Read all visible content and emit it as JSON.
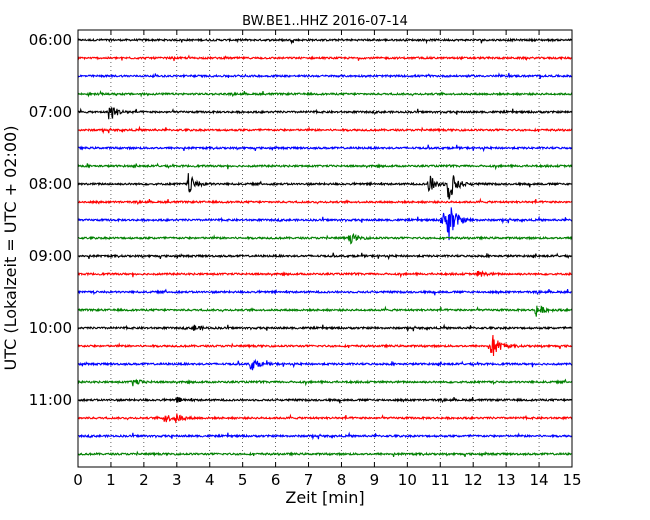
{
  "chart_data": {
    "type": "line",
    "title": "BW.BE1..HHZ 2016-07-14",
    "xlabel": "Zeit  [min]",
    "ylabel": "UTC (Lokalzeit = UTC + 02:00)",
    "xlim": [
      0,
      15
    ],
    "x_ticks": [
      "0",
      "1",
      "2",
      "3",
      "4",
      "5",
      "6",
      "7",
      "8",
      "9",
      "10",
      "11",
      "12",
      "13",
      "14",
      "15"
    ],
    "y_tick_labels": [
      "06:00",
      "07:00",
      "08:00",
      "09:00",
      "10:00",
      "11:00"
    ],
    "y_ticks_trace_index": [
      0,
      4,
      8,
      12,
      16,
      20
    ],
    "grid": "vertical dotted",
    "trace_colors": [
      "#000000",
      "#ff0000",
      "#0000ff",
      "#008000"
    ],
    "trace_start_times": [
      "06:00",
      "06:15",
      "06:30",
      "06:45",
      "07:00",
      "07:15",
      "07:30",
      "07:45",
      "08:00",
      "08:15",
      "08:30",
      "08:45",
      "09:00",
      "09:15",
      "09:30",
      "09:45",
      "10:00",
      "10:15",
      "10:30",
      "10:45",
      "11:00",
      "11:15",
      "11:30",
      "11:45"
    ],
    "events": [
      {
        "trace": 4,
        "minute": 0.95,
        "amplitude": 1.4
      },
      {
        "trace": 8,
        "minute": 3.35,
        "amplitude": 1.5
      },
      {
        "trace": 8,
        "minute": 10.65,
        "amplitude": 1.4
      },
      {
        "trace": 8,
        "minute": 11.25,
        "amplitude": 2.8
      },
      {
        "trace": 10,
        "minute": 11.05,
        "amplitude": 1.3
      },
      {
        "trace": 10,
        "minute": 11.25,
        "amplitude": 3.0
      },
      {
        "trace": 11,
        "minute": 8.25,
        "amplitude": 0.8
      },
      {
        "trace": 13,
        "minute": 12.15,
        "amplitude": 0.5
      },
      {
        "trace": 15,
        "minute": 13.9,
        "amplitude": 1.0
      },
      {
        "trace": 16,
        "minute": 3.5,
        "amplitude": 0.5
      },
      {
        "trace": 17,
        "minute": 12.55,
        "amplitude": 2.2
      },
      {
        "trace": 18,
        "minute": 5.25,
        "amplitude": 1.0
      },
      {
        "trace": 19,
        "minute": 1.65,
        "amplitude": 0.6
      },
      {
        "trace": 20,
        "minute": 3.0,
        "amplitude": 0.4
      },
      {
        "trace": 21,
        "minute": 2.6,
        "amplitude": 0.8
      },
      {
        "trace": 21,
        "minute": 2.95,
        "amplitude": 0.6
      }
    ]
  }
}
